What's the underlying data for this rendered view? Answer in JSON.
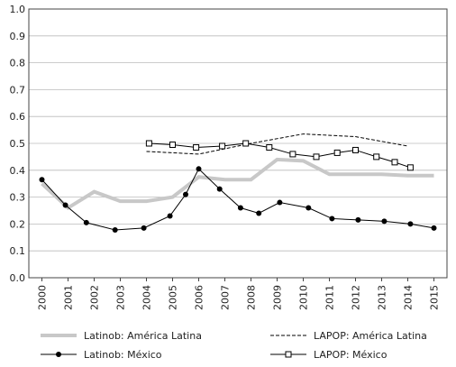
{
  "chart_data": {
    "type": "line",
    "xlim": [
      1999.5,
      2015.5
    ],
    "xticks": [
      2000,
      2001,
      2002,
      2003,
      2004,
      2005,
      2006,
      2007,
      2008,
      2009,
      2010,
      2011,
      2012,
      2013,
      2014,
      2015
    ],
    "ylim": [
      0,
      1
    ],
    "yticks": [
      {
        "value": 0,
        "label": "0.0"
      },
      0.1,
      0.2,
      0.3,
      0.4,
      0.5,
      0.6,
      0.7,
      0.8,
      0.9,
      {
        "value": 1,
        "label": "1.0"
      }
    ],
    "grid": true,
    "series": [
      {
        "name": "Latinob: América Latina",
        "color": "#c8c8c8",
        "style": "thick",
        "x": [
          2000,
          2001,
          2002,
          2003,
          2004,
          2005,
          2006,
          2007,
          2008,
          2009,
          2010,
          2011,
          2012,
          2013,
          2014,
          2015
        ],
        "values": [
          0.35,
          0.26,
          0.32,
          0.285,
          0.285,
          0.3,
          0.375,
          0.365,
          0.365,
          0.44,
          0.435,
          0.385,
          0.385,
          0.385,
          0.38,
          0.38
        ]
      },
      {
        "name": "LAPOP: América Latina",
        "color": "#000000",
        "style": "dashed",
        "x": [
          2004,
          2006,
          2008,
          2010,
          2012,
          2014
        ],
        "values": [
          0.47,
          0.46,
          0.5,
          0.535,
          0.525,
          0.49
        ]
      },
      {
        "name": "Latinob: México",
        "color": "#000000",
        "style": "dot",
        "x": [
          2000,
          2000.9,
          2001.7,
          2002.8,
          2003.9,
          2004.9,
          2005.5,
          2006.0,
          2006.8,
          2007.6,
          2008.3,
          2009.1,
          2010.2,
          2011.1,
          2012.1,
          2013.1,
          2014.1,
          2015.0
        ],
        "values": [
          0.365,
          0.27,
          0.205,
          0.178,
          0.185,
          0.23,
          0.31,
          0.405,
          0.33,
          0.26,
          0.24,
          0.28,
          0.26,
          0.22,
          0.215,
          0.21,
          0.2,
          0.185
        ]
      },
      {
        "name": "LAPOP: México",
        "color": "#000000",
        "style": "square",
        "x": [
          2004.1,
          2005,
          2005.9,
          2006.9,
          2007.8,
          2008.7,
          2009.6,
          2010.5,
          2011.3,
          2012.0,
          2012.8,
          2013.5,
          2014.1
        ],
        "values": [
          0.5,
          0.495,
          0.485,
          0.49,
          0.5,
          0.485,
          0.46,
          0.45,
          0.465,
          0.475,
          0.45,
          0.43,
          0.41
        ]
      }
    ]
  }
}
